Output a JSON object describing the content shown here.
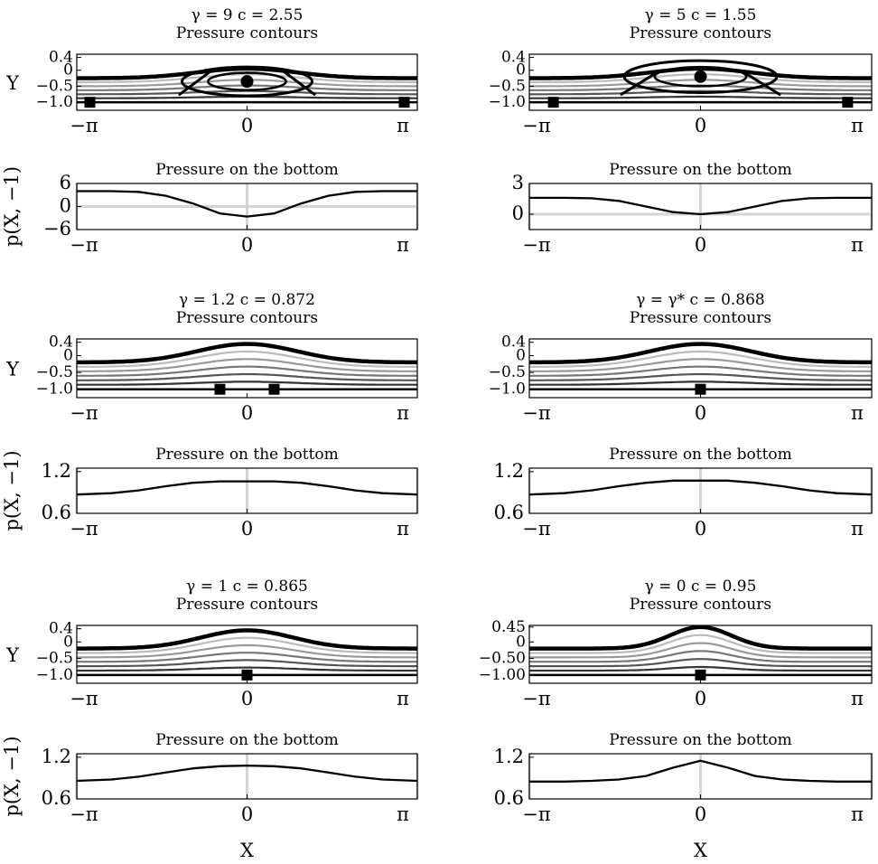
{
  "chart_data": {
    "type": "line",
    "x_tick_labels": [
      "−π",
      "0",
      "π"
    ],
    "xlabel": "X",
    "contour_ylabel": "Y",
    "pressure_ylabel": "p(X, −1)",
    "contour_title": "Pressure contours",
    "pressure_title": "Pressure on the bottom",
    "panels": [
      {
        "gamma": "γ = 9",
        "c": "c = 2.55",
        "contour_yticks": [
          "0.4",
          "0",
          "−0.5",
          "−1.0"
        ],
        "contour_ytick_values": [
          0.4,
          0,
          -0.5,
          -1.0
        ],
        "surface": {
          "amplitude": 0.3,
          "peak": 0.3,
          "baseline": -0.25,
          "width": 1.3
        },
        "markers": [
          {
            "shape": "circle",
            "x": 0,
            "y": -0.35
          },
          {
            "shape": "square",
            "x": -2.9,
            "y": -1.0
          },
          {
            "shape": "square",
            "x": 2.9,
            "y": -1.0
          }
        ],
        "eye": {
          "x": 0,
          "y": -0.35,
          "rx": 1.2,
          "ry": 0.45
        },
        "pressure_yticks": [
          "6",
          "0",
          "−6"
        ],
        "pressure_ytick_values": [
          6,
          0,
          -6
        ],
        "pressure_ylim": [
          -6,
          6
        ],
        "pressure": {
          "x": [
            -3.1416,
            -2.5,
            -2.0,
            -1.5,
            -1.0,
            -0.5,
            0,
            0.5,
            1.0,
            1.5,
            2.0,
            2.5,
            3.1416
          ],
          "y": [
            4.0,
            4.0,
            3.8,
            2.8,
            0.8,
            -1.8,
            -2.6,
            -1.8,
            0.8,
            2.8,
            3.8,
            4.0,
            4.0
          ]
        }
      },
      {
        "gamma": "γ = 5",
        "c": "c = 1.55",
        "contour_yticks": [
          "0.4",
          "0",
          "−0.5",
          "−1.0"
        ],
        "contour_ytick_values": [
          0.4,
          0,
          -0.5,
          -1.0
        ],
        "surface": {
          "amplitude": 0.3,
          "peak": 0.3,
          "baseline": -0.25,
          "width": 1.3
        },
        "markers": [
          {
            "shape": "circle",
            "x": 0,
            "y": -0.2
          },
          {
            "shape": "square",
            "x": -2.7,
            "y": -1.0
          },
          {
            "shape": "square",
            "x": 2.7,
            "y": -1.0
          }
        ],
        "eye": {
          "x": 0,
          "y": -0.2,
          "rx": 1.4,
          "ry": 0.5
        },
        "pressure_yticks": [
          "3",
          "0"
        ],
        "pressure_ytick_values": [
          3,
          0
        ],
        "pressure_ylim": [
          -1.5,
          3
        ],
        "pressure": {
          "x": [
            -3.1416,
            -2.5,
            -2.0,
            -1.5,
            -1.0,
            -0.5,
            0,
            0.5,
            1.0,
            1.5,
            2.0,
            2.5,
            3.1416
          ],
          "y": [
            1.6,
            1.6,
            1.55,
            1.3,
            0.75,
            0.2,
            0.0,
            0.2,
            0.75,
            1.3,
            1.55,
            1.6,
            1.6
          ]
        }
      },
      {
        "gamma": "γ = 1.2",
        "c": "c = 0.872",
        "contour_yticks": [
          "0.4",
          "0",
          "−0.5",
          "−1.0"
        ],
        "contour_ytick_values": [
          0.4,
          0,
          -0.5,
          -1.0
        ],
        "surface": {
          "amplitude": 0.55,
          "peak": 0.35,
          "baseline": -0.2,
          "width": 1.3
        },
        "markers": [
          {
            "shape": "square",
            "x": -0.5,
            "y": -1.0
          },
          {
            "shape": "square",
            "x": 0.5,
            "y": -1.0
          }
        ],
        "pressure_yticks": [
          "1.2",
          "0.6"
        ],
        "pressure_ytick_values": [
          1.2,
          0.6
        ],
        "pressure_ylim": [
          0.6,
          1.25
        ],
        "pressure": {
          "x": [
            -3.1416,
            -2.5,
            -2.0,
            -1.5,
            -1.0,
            -0.5,
            0,
            0.5,
            1.0,
            1.5,
            2.0,
            2.5,
            3.1416
          ],
          "y": [
            0.87,
            0.89,
            0.93,
            0.99,
            1.04,
            1.06,
            1.06,
            1.06,
            1.04,
            0.99,
            0.93,
            0.89,
            0.87
          ]
        }
      },
      {
        "gamma": "γ = γ*",
        "c": "c = 0.868",
        "contour_yticks": [
          "0.4",
          "0",
          "−0.5",
          "−1.0"
        ],
        "contour_ytick_values": [
          0.4,
          0,
          -0.5,
          -1.0
        ],
        "surface": {
          "amplitude": 0.55,
          "peak": 0.35,
          "baseline": -0.2,
          "width": 1.3
        },
        "markers": [
          {
            "shape": "square",
            "x": 0,
            "y": -1.0
          }
        ],
        "pressure_yticks": [
          "1.2",
          "0.6"
        ],
        "pressure_ytick_values": [
          1.2,
          0.6
        ],
        "pressure_ylim": [
          0.6,
          1.25
        ],
        "pressure": {
          "x": [
            -3.1416,
            -2.5,
            -2.0,
            -1.5,
            -1.0,
            -0.5,
            0,
            0.5,
            1.0,
            1.5,
            2.0,
            2.5,
            3.1416
          ],
          "y": [
            0.87,
            0.89,
            0.93,
            0.99,
            1.04,
            1.07,
            1.07,
            1.07,
            1.04,
            0.99,
            0.93,
            0.89,
            0.87
          ]
        }
      },
      {
        "gamma": "γ = 1",
        "c": "c = 0.865",
        "contour_yticks": [
          "0.4",
          "0",
          "−0.5",
          "−1.0"
        ],
        "contour_ytick_values": [
          0.4,
          0,
          -0.5,
          -1.0
        ],
        "surface": {
          "amplitude": 0.55,
          "peak": 0.35,
          "baseline": -0.2,
          "width": 1.2
        },
        "markers": [
          {
            "shape": "square",
            "x": 0,
            "y": -1.0
          }
        ],
        "pressure_yticks": [
          "1.2",
          "0.6"
        ],
        "pressure_ytick_values": [
          1.2,
          0.6
        ],
        "pressure_ylim": [
          0.6,
          1.25
        ],
        "pressure": {
          "x": [
            -3.1416,
            -2.5,
            -2.0,
            -1.5,
            -1.0,
            -0.5,
            0,
            0.5,
            1.0,
            1.5,
            2.0,
            2.5,
            3.1416
          ],
          "y": [
            0.86,
            0.88,
            0.92,
            0.98,
            1.04,
            1.07,
            1.08,
            1.07,
            1.04,
            0.98,
            0.92,
            0.88,
            0.86
          ]
        }
      },
      {
        "gamma": "γ = 0",
        "c": "c = 0.95",
        "contour_yticks": [
          "0.45",
          "0",
          "−0.50",
          "−1.00"
        ],
        "contour_ytick_values": [
          0.45,
          0,
          -0.5,
          -1.0
        ],
        "surface": {
          "amplitude": 0.65,
          "peak": 0.45,
          "baseline": -0.2,
          "width": 0.8
        },
        "markers": [
          {
            "shape": "square",
            "x": 0,
            "y": -1.0
          }
        ],
        "pressure_yticks": [
          "1.2",
          "0.6"
        ],
        "pressure_ytick_values": [
          1.2,
          0.6
        ],
        "pressure_ylim": [
          0.6,
          1.25
        ],
        "pressure": {
          "x": [
            -3.1416,
            -2.5,
            -2.0,
            -1.5,
            -1.0,
            -0.5,
            0,
            0.5,
            1.0,
            1.5,
            2.0,
            2.5,
            3.1416
          ],
          "y": [
            0.85,
            0.85,
            0.86,
            0.88,
            0.93,
            1.05,
            1.15,
            1.05,
            0.93,
            0.88,
            0.86,
            0.85,
            0.85
          ]
        }
      }
    ]
  }
}
